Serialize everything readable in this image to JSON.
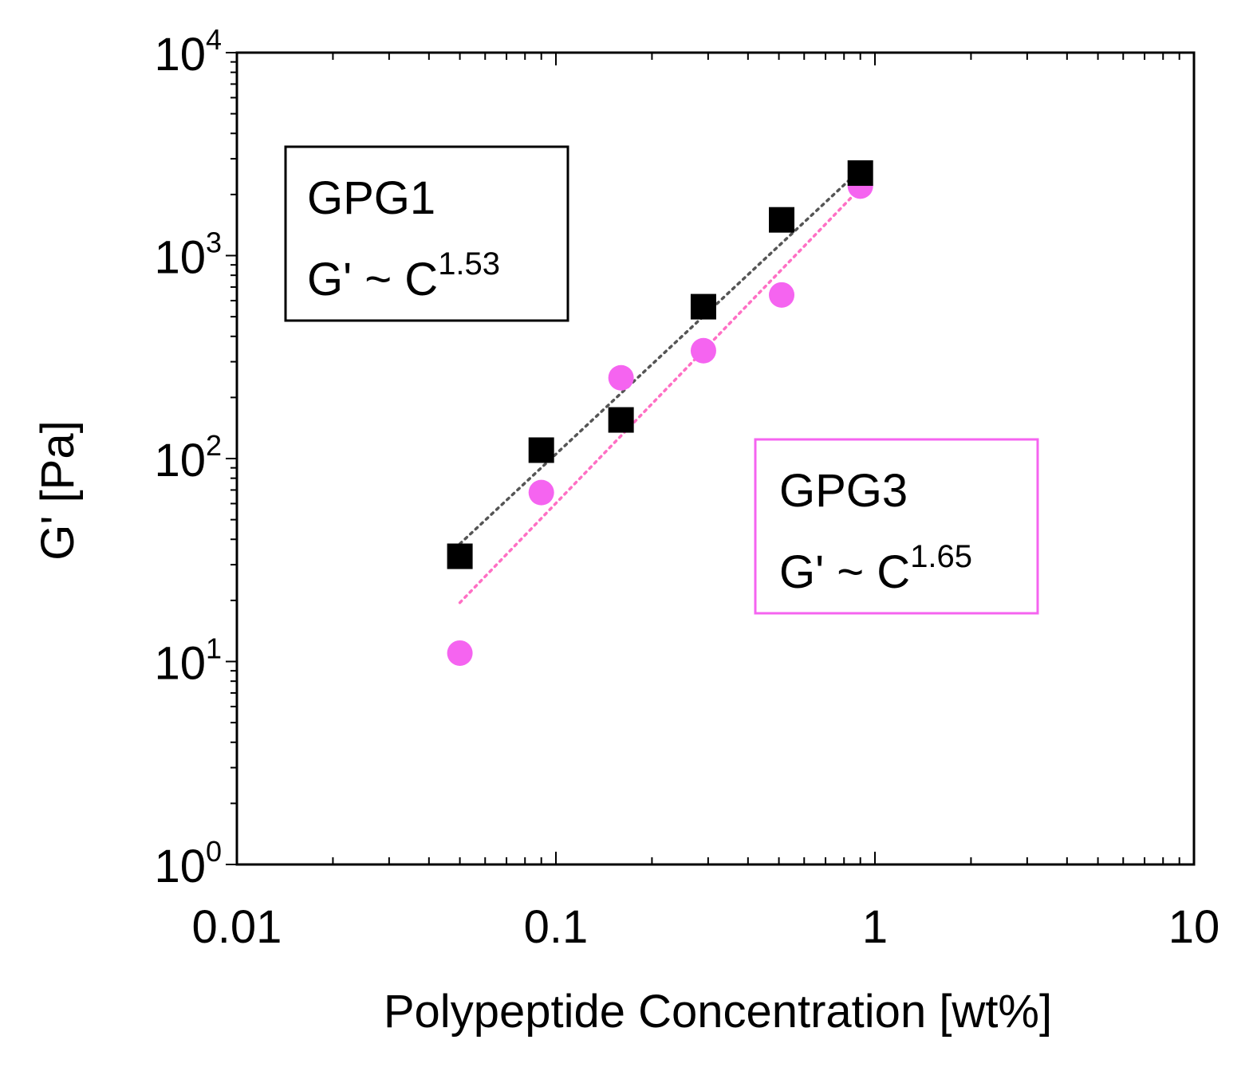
{
  "chart_data": {
    "type": "scatter",
    "xscale": "log",
    "yscale": "log",
    "xlim": [
      0.01,
      10
    ],
    "ylim": [
      1,
      10000
    ],
    "xlabel": "Polypeptide Concentration [wt%]",
    "ylabel": "G' [Pa]",
    "x_ticks": [
      {
        "value": 0.01,
        "label": "0.01"
      },
      {
        "value": 0.1,
        "label": "0.1"
      },
      {
        "value": 1,
        "label": "1"
      },
      {
        "value": 10,
        "label": "10"
      }
    ],
    "y_ticks": [
      {
        "value": 1,
        "base": "10",
        "exp": "0"
      },
      {
        "value": 10,
        "base": "10",
        "exp": "1"
      },
      {
        "value": 100,
        "base": "10",
        "exp": "2"
      },
      {
        "value": 1000,
        "base": "10",
        "exp": "3"
      },
      {
        "value": 10000,
        "base": "10",
        "exp": "4"
      }
    ],
    "series": [
      {
        "name": "GPG1",
        "marker": "square",
        "color": "#000000",
        "fit_color": "#555555",
        "x": [
          0.05,
          0.09,
          0.16,
          0.29,
          0.51,
          0.9
        ],
        "y": [
          33,
          110,
          155,
          560,
          1500,
          2550
        ],
        "fit": {
          "exponent": 1.53,
          "x_range": [
            0.05,
            0.9
          ],
          "y_range": [
            38,
            2650
          ]
        }
      },
      {
        "name": "GPG3",
        "marker": "circle",
        "color": "#f564f0",
        "fit_color": "#ff6fc4",
        "x": [
          0.05,
          0.09,
          0.16,
          0.29,
          0.51,
          0.9
        ],
        "y": [
          11,
          68,
          250,
          340,
          640,
          2200
        ],
        "fit": {
          "exponent": 1.65,
          "x_range": [
            0.05,
            0.9
          ],
          "y_range": [
            19.5,
            2150
          ]
        }
      }
    ],
    "annotations": [
      {
        "series": "GPG1",
        "name_line": "GPG1",
        "eq_prefix": "G' ~ C",
        "eq_exp": "1.53",
        "border_color": "#000000"
      },
      {
        "series": "GPG3",
        "name_line": "GPG3",
        "eq_prefix": "G' ~ C",
        "eq_exp": "1.65",
        "border_color": "#f564f0"
      }
    ]
  }
}
